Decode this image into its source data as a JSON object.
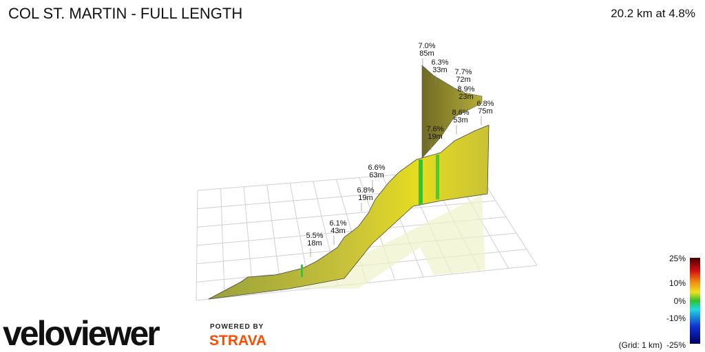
{
  "header": {
    "title": "COL ST. MARTIN - FULL LENGTH",
    "summary": "20.2 km at 4.8%"
  },
  "annotations": [
    {
      "grade": "7.0%",
      "length": "85m"
    },
    {
      "grade": "6.3%",
      "length": "33m"
    },
    {
      "grade": "7.7%",
      "length": "72m"
    },
    {
      "grade": "8.9%",
      "length": "23m"
    },
    {
      "grade": "6.8%",
      "length": "75m"
    },
    {
      "grade": "8.6%",
      "length": "53m"
    },
    {
      "grade": "7.6%",
      "length": "19m"
    },
    {
      "grade": "6.6%",
      "length": "63m"
    },
    {
      "grade": "6.8%",
      "length": "19m"
    },
    {
      "grade": "6.1%",
      "length": "43m"
    },
    {
      "grade": "5.5%",
      "length": "18m"
    }
  ],
  "color_scale": {
    "labels": [
      "25%",
      "10%",
      "0%",
      "-10%",
      "-25%"
    ],
    "grid_note": "(Grid: 1 km)"
  },
  "branding": {
    "logo": "veloviewer",
    "powered_by": "POWERED BY",
    "partner": "STRAVA"
  }
}
